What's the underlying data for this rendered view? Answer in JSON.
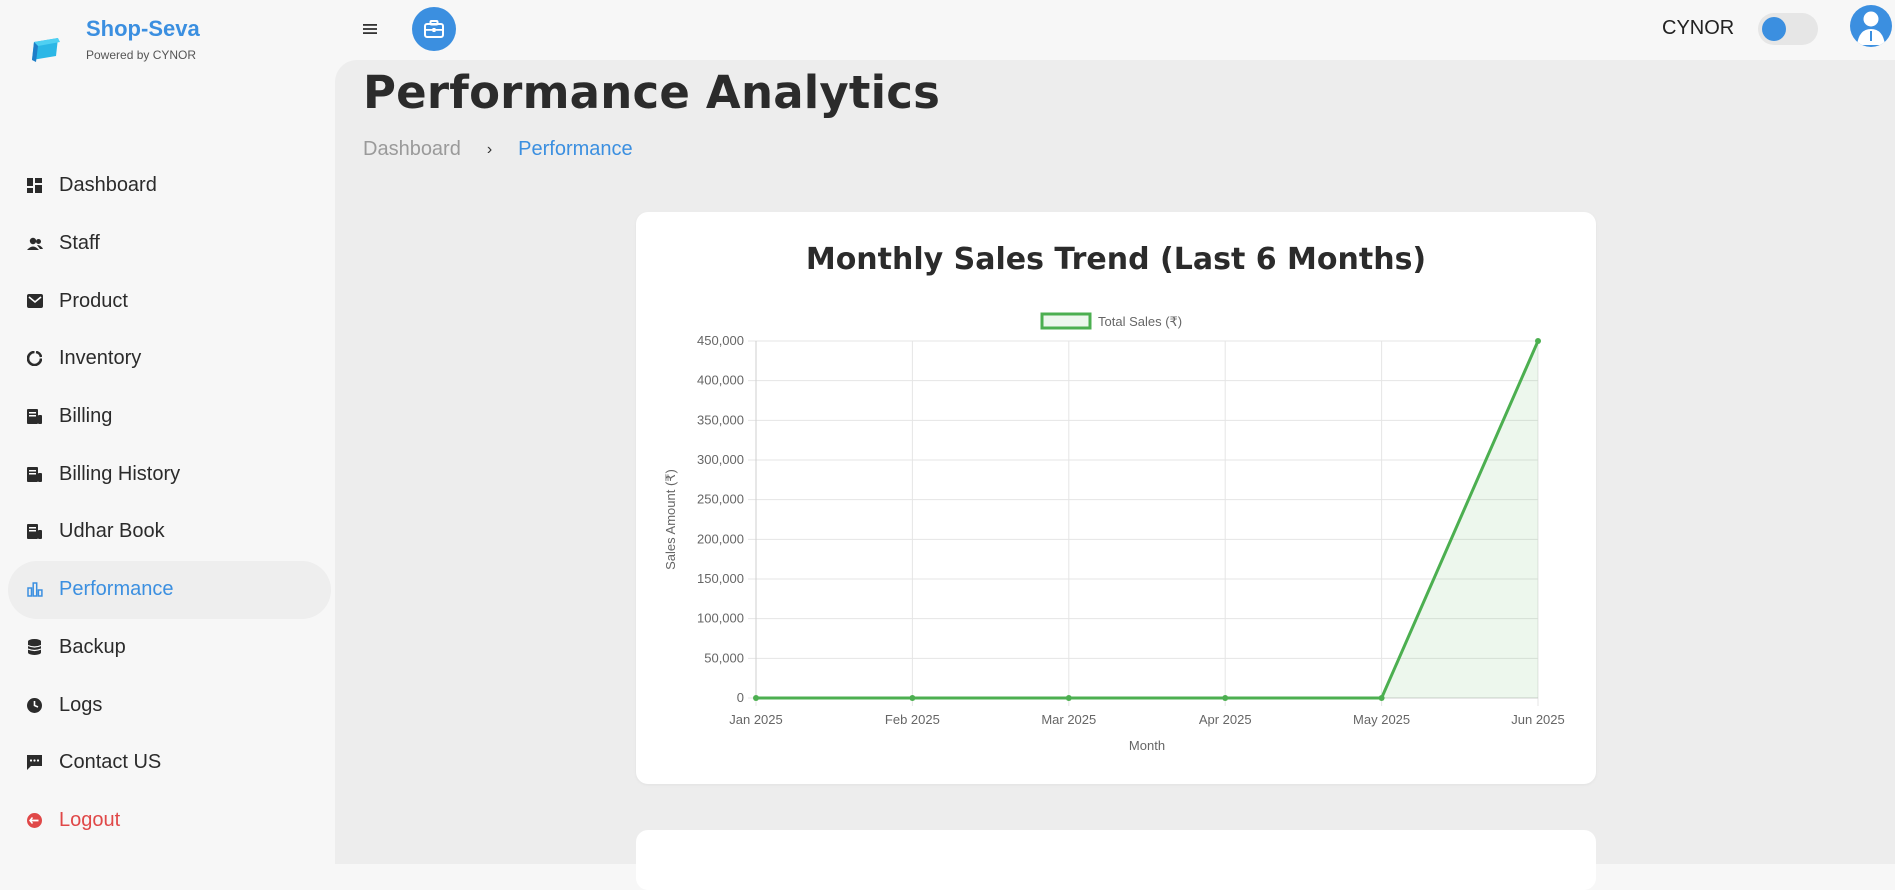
{
  "brand": {
    "name": "Shop-Seva",
    "subtitle": "Powered by CYNOR",
    "accent": "#3b8fe0"
  },
  "sidebar": {
    "items": [
      {
        "label": "Dashboard",
        "icon": "dashboard-icon"
      },
      {
        "label": "Staff",
        "icon": "staff-icon"
      },
      {
        "label": "Product",
        "icon": "product-icon"
      },
      {
        "label": "Inventory",
        "icon": "inventory-icon"
      },
      {
        "label": "Billing",
        "icon": "billing-icon"
      },
      {
        "label": "Billing History",
        "icon": "billing-history-icon"
      },
      {
        "label": "Udhar Book",
        "icon": "udhar-book-icon"
      },
      {
        "label": "Performance",
        "icon": "performance-icon",
        "active": true
      },
      {
        "label": "Backup",
        "icon": "backup-icon"
      },
      {
        "label": "Logs",
        "icon": "logs-icon"
      },
      {
        "label": "Contact US",
        "icon": "contact-icon"
      },
      {
        "label": "Logout",
        "icon": "logout-icon",
        "color": "#e04848"
      }
    ]
  },
  "topbar": {
    "user_name": "CYNOR",
    "theme_toggle_on": true
  },
  "page": {
    "title": "Performance Analytics",
    "breadcrumb": {
      "home": "Dashboard",
      "separator": "›",
      "current": "Performance"
    }
  },
  "chart_data": {
    "type": "line",
    "title": "Monthly Sales Trend (Last 6 Months)",
    "categories": [
      "Jan 2025",
      "Feb 2025",
      "Mar 2025",
      "Apr 2025",
      "May 2025",
      "Jun 2025"
    ],
    "series": [
      {
        "name": "Total Sales (₹)",
        "values": [
          0,
          0,
          0,
          0,
          0,
          450000
        ],
        "color": "#4caf50",
        "fill": true
      }
    ],
    "xlabel": "Month",
    "ylabel": "Sales Amount (₹)",
    "ylim": [
      0,
      450000
    ],
    "yticks": [
      "0",
      "50,000",
      "100,000",
      "150,000",
      "200,000",
      "250,000",
      "300,000",
      "350,000",
      "400,000",
      "450,000"
    ],
    "grid": true,
    "legend_position": "top"
  }
}
